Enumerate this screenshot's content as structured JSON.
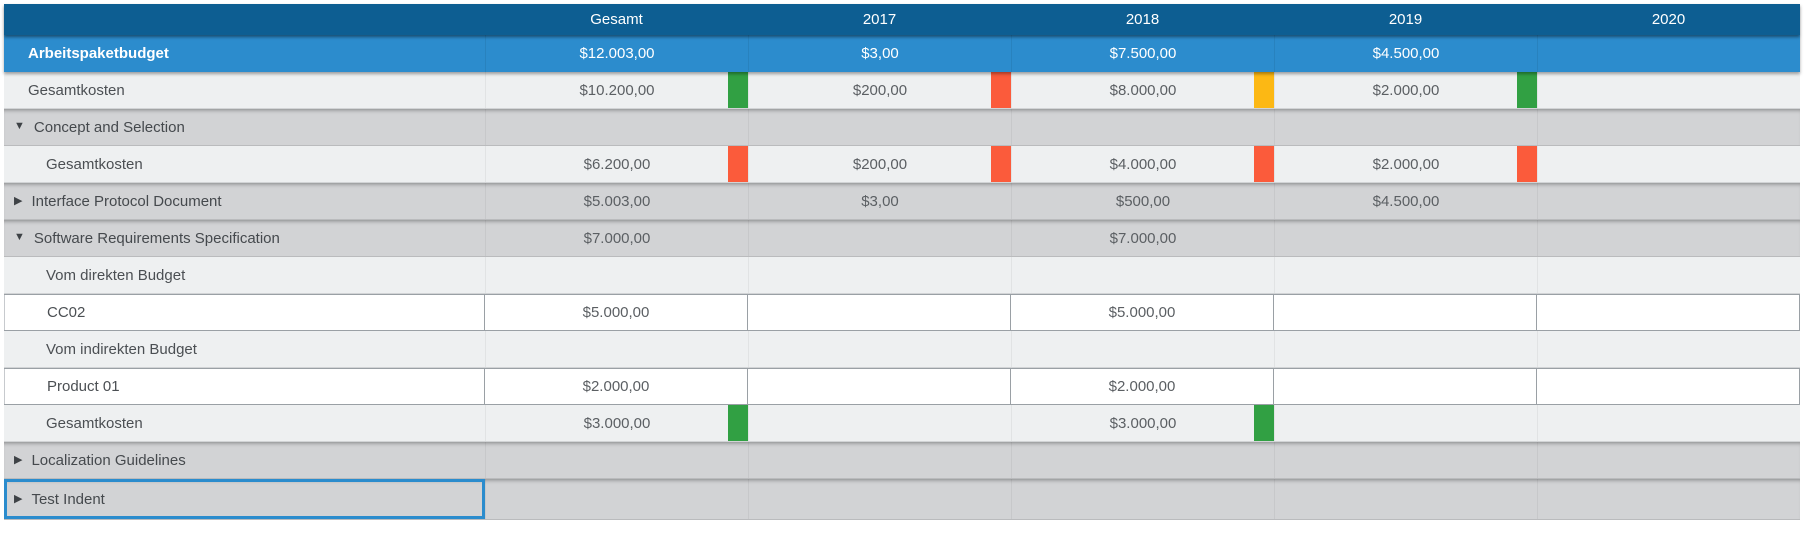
{
  "colors": {
    "header_bg": "#0d5e92",
    "budget_row_bg": "#2c8ccd",
    "selected_outline": "#2b8ccd",
    "green": "#31a043",
    "red": "#fb5b3b",
    "amber": "#fcb814"
  },
  "columns": [
    {
      "key": "gesamt",
      "label": "Gesamt"
    },
    {
      "key": "2017",
      "label": "2017"
    },
    {
      "key": "2018",
      "label": "2018"
    },
    {
      "key": "2019",
      "label": "2019"
    },
    {
      "key": "2020",
      "label": "2020"
    }
  ],
  "rows": [
    {
      "id": "arbeitspaketbudget",
      "kind": "budget",
      "indent": "0",
      "label": "Arbeitspaketbudget",
      "values": [
        "$12.003,00",
        "$3,00",
        "$7.500,00",
        "$4.500,00",
        ""
      ],
      "indicators": [
        null,
        null,
        null,
        null,
        null
      ],
      "interactable_row": false,
      "interactable_cells": false
    },
    {
      "id": "gesamtkosten-total",
      "kind": "light",
      "indent": "0",
      "label": "Gesamtkosten",
      "values": [
        "$10.200,00",
        "$200,00",
        "$8.000,00",
        "$2.000,00",
        ""
      ],
      "indicators": [
        "green",
        "red",
        "amber",
        "green",
        null
      ],
      "interactable_row": false,
      "interactable_cells": false
    },
    {
      "id": "concept-and-selection",
      "kind": "group",
      "indent": "g",
      "arrow": "expanded",
      "label": "Concept and Selection",
      "values": [
        "",
        "",
        "",
        "",
        ""
      ],
      "indicators": [
        null,
        null,
        null,
        null,
        null
      ],
      "interactable_row": true,
      "interactable_cells": false
    },
    {
      "id": "gesamtkosten-concept",
      "kind": "light",
      "indent": "2",
      "label": "Gesamtkosten",
      "values": [
        "$6.200,00",
        "$200,00",
        "$4.000,00",
        "$2.000,00",
        ""
      ],
      "indicators": [
        "red",
        "red",
        "red",
        "red",
        null
      ],
      "interactable_row": false,
      "interactable_cells": false
    },
    {
      "id": "interface-protocol-document",
      "kind": "group",
      "indent": "g",
      "arrow": "collapsed",
      "label": "Interface Protocol Document",
      "values": [
        "$5.003,00",
        "$3,00",
        "$500,00",
        "$4.500,00",
        ""
      ],
      "indicators": [
        null,
        null,
        null,
        null,
        null
      ],
      "interactable_row": true,
      "interactable_cells": false
    },
    {
      "id": "software-requirements-specification",
      "kind": "group",
      "indent": "g",
      "arrow": "expanded",
      "label": "Software Requirements Specification",
      "values": [
        "$7.000,00",
        "",
        "$7.000,00",
        "",
        ""
      ],
      "indicators": [
        null,
        null,
        null,
        null,
        null
      ],
      "interactable_row": true,
      "interactable_cells": false
    },
    {
      "id": "vom-direkten-budget",
      "kind": "subheader",
      "indent": "2",
      "label": "Vom direkten Budget",
      "values": [
        "",
        "",
        "",
        "",
        ""
      ],
      "indicators": [
        null,
        null,
        null,
        null,
        null
      ],
      "interactable_row": false,
      "interactable_cells": false
    },
    {
      "id": "cc02",
      "kind": "input",
      "indent": "2",
      "label": "CC02",
      "values": [
        "$5.000,00",
        "",
        "$5.000,00",
        "",
        ""
      ],
      "indicators": [
        null,
        null,
        null,
        null,
        null
      ],
      "interactable_row": false,
      "interactable_cells": true
    },
    {
      "id": "vom-indirekten-budget",
      "kind": "subheader",
      "indent": "2",
      "label": "Vom indirekten Budget",
      "values": [
        "",
        "",
        "",
        "",
        ""
      ],
      "indicators": [
        null,
        null,
        null,
        null,
        null
      ],
      "interactable_row": false,
      "interactable_cells": false
    },
    {
      "id": "product-01",
      "kind": "input",
      "indent": "2",
      "label": "Product 01",
      "values": [
        "$2.000,00",
        "",
        "$2.000,00",
        "",
        ""
      ],
      "indicators": [
        null,
        null,
        null,
        null,
        null
      ],
      "interactable_row": false,
      "interactable_cells": true
    },
    {
      "id": "gesamtkosten-software",
      "kind": "light",
      "indent": "2",
      "label": "Gesamtkosten",
      "values": [
        "$3.000,00",
        "",
        "$3.000,00",
        "",
        ""
      ],
      "indicators": [
        "green",
        null,
        "green",
        null,
        null
      ],
      "interactable_row": false,
      "interactable_cells": false
    },
    {
      "id": "localization-guidelines",
      "kind": "group",
      "indent": "g",
      "arrow": "collapsed",
      "label": "Localization Guidelines",
      "values": [
        "",
        "",
        "",
        "",
        ""
      ],
      "indicators": [
        null,
        null,
        null,
        null,
        null
      ],
      "interactable_row": true,
      "interactable_cells": false
    },
    {
      "id": "test-indent",
      "kind": "group",
      "indent": "g",
      "arrow": "collapsed",
      "label": "Test Indent",
      "selected": true,
      "values": [
        "",
        "",
        "",
        "",
        ""
      ],
      "indicators": [
        null,
        null,
        null,
        null,
        null
      ],
      "interactable_row": true,
      "interactable_cells": false
    }
  ],
  "icons": {
    "expanded": "▼",
    "collapsed": "▶"
  }
}
